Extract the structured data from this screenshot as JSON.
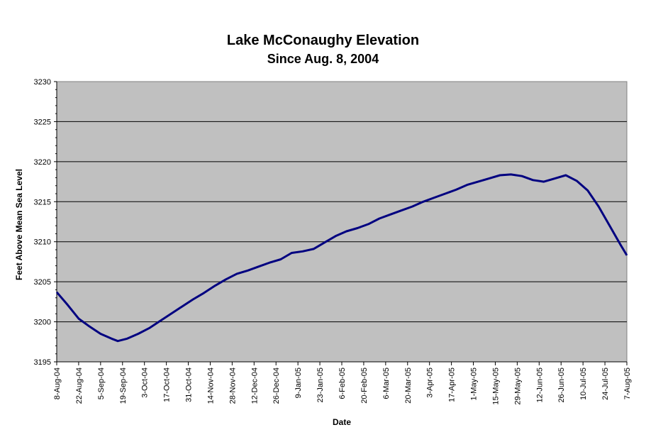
{
  "chart_data": {
    "type": "line",
    "title": "Lake McConaughy Elevation",
    "subtitle": "Since Aug. 8, 2004",
    "xlabel": "Date",
    "ylabel": "Feet Above Mean Sea Level",
    "ylim": [
      3195,
      3230
    ],
    "yticks": [
      3195,
      3200,
      3205,
      3210,
      3215,
      3220,
      3225,
      3230
    ],
    "xlim": [
      "2004-08-08",
      "2005-08-07"
    ],
    "xticks": [
      "8-Aug-04",
      "22-Aug-04",
      "5-Sep-04",
      "19-Sep-04",
      "3-Oct-04",
      "17-Oct-04",
      "31-Oct-04",
      "14-Nov-04",
      "28-Nov-04",
      "12-Dec-04",
      "26-Dec-04",
      "9-Jan-05",
      "23-Jan-05",
      "6-Feb-05",
      "20-Feb-05",
      "6-Mar-05",
      "20-Mar-05",
      "3-Apr-05",
      "17-Apr-05",
      "1-May-05",
      "15-May-05",
      "29-May-05",
      "12-Jun-05",
      "26-Jun-05",
      "10-Jul-05",
      "24-Jul-05",
      "7-Aug-05"
    ],
    "grid": true,
    "legend": "none",
    "colors": {
      "plot_background": "#c0c0c0",
      "line": "#000080",
      "gridline": "#000000"
    },
    "series": [
      {
        "x": [
          "2004-08-08",
          "2004-08-15",
          "2004-08-22",
          "2004-08-29",
          "2004-09-05",
          "2004-09-12",
          "2004-09-16",
          "2004-09-22",
          "2004-09-29",
          "2004-10-06",
          "2004-10-13",
          "2004-10-20",
          "2004-10-27",
          "2004-11-03",
          "2004-11-10",
          "2004-11-17",
          "2004-11-24",
          "2004-12-01",
          "2004-12-08",
          "2004-12-15",
          "2004-12-22",
          "2004-12-29",
          "2005-01-05",
          "2005-01-12",
          "2005-01-19",
          "2005-01-26",
          "2005-02-02",
          "2005-02-09",
          "2005-02-16",
          "2005-02-23",
          "2005-03-02",
          "2005-03-09",
          "2005-03-16",
          "2005-03-23",
          "2005-03-30",
          "2005-04-06",
          "2005-04-13",
          "2005-04-20",
          "2005-04-27",
          "2005-05-04",
          "2005-05-11",
          "2005-05-18",
          "2005-05-25",
          "2005-06-01",
          "2005-06-08",
          "2005-06-15",
          "2005-06-22",
          "2005-06-29",
          "2005-07-06",
          "2005-07-13",
          "2005-07-20",
          "2005-07-27",
          "2005-08-03",
          "2005-08-07"
        ],
        "values": [
          3203.7,
          3202.1,
          3200.4,
          3199.4,
          3198.5,
          3197.9,
          3197.6,
          3197.9,
          3198.5,
          3199.2,
          3200.1,
          3201.0,
          3201.9,
          3202.8,
          3203.6,
          3204.5,
          3205.3,
          3206.0,
          3206.4,
          3206.9,
          3207.4,
          3207.8,
          3208.6,
          3208.8,
          3209.1,
          3209.9,
          3210.7,
          3211.3,
          3211.7,
          3212.2,
          3212.9,
          3213.4,
          3213.9,
          3214.4,
          3215.0,
          3215.5,
          3216.0,
          3216.5,
          3217.1,
          3217.5,
          3217.9,
          3218.3,
          3218.4,
          3218.2,
          3217.7,
          3217.5,
          3217.9,
          3218.3,
          3217.6,
          3216.4,
          3214.4,
          3212.0,
          3209.6,
          3208.3
        ]
      }
    ]
  }
}
